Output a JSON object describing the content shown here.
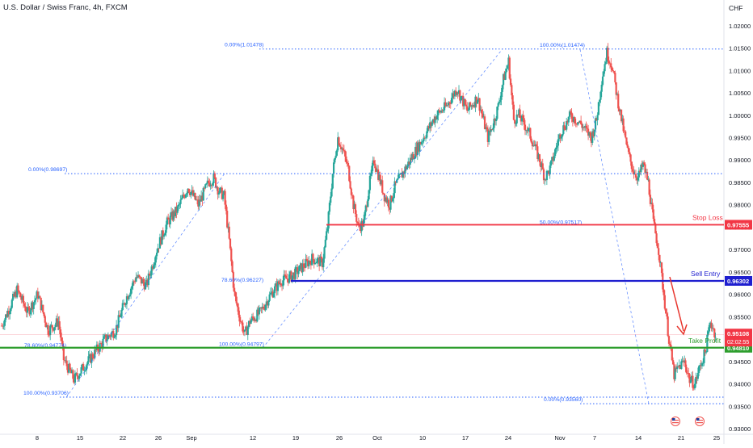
{
  "header": {
    "symbol_title": "U.S. Dollar / Swiss Franc, 4h, FXCM",
    "currency": "CHF"
  },
  "colors": {
    "up_candle": "#26a69a",
    "down_candle": "#ef5350",
    "stop_loss": "#f23645",
    "sell_entry": "#1e1ecf",
    "take_profit": "#2e9e2e",
    "current_price": "#f23645",
    "fib": "#2962ff",
    "axis_text": "#131722"
  },
  "chart_data": {
    "type": "candlestick",
    "title": "U.S. Dollar / Swiss Franc, 4h, FXCM",
    "ylim": [
      0.9295,
      1.0232
    ],
    "y_ticks": [
      "1.02000",
      "1.01500",
      "1.01000",
      "1.00500",
      "1.00000",
      "0.99500",
      "0.99000",
      "0.98500",
      "0.98000",
      "0.97500",
      "0.97000",
      "0.96500",
      "0.96000",
      "0.95500",
      "0.95000",
      "0.94500",
      "0.94000",
      "0.93500",
      "0.93000"
    ],
    "x_ticks": [
      "8",
      "15",
      "22",
      "26",
      "Sep",
      "12",
      "19",
      "26",
      "Oct",
      "10",
      "17",
      "24",
      "Nov",
      "7",
      "14",
      "21",
      "25"
    ],
    "series_close_path": [
      [
        0,
        0.953
      ],
      [
        3,
        0.961
      ],
      [
        5,
        0.956
      ],
      [
        7,
        0.96
      ],
      [
        9,
        0.952
      ],
      [
        11,
        0.954
      ],
      [
        12,
        0.9455
      ],
      [
        14,
        0.941
      ],
      [
        16,
        0.944
      ],
      [
        18,
        0.947
      ],
      [
        20,
        0.95
      ],
      [
        22,
        0.952
      ],
      [
        24,
        0.959
      ],
      [
        26,
        0.964
      ],
      [
        28,
        0.962
      ],
      [
        30,
        0.97
      ],
      [
        32,
        0.976
      ],
      [
        34,
        0.979
      ],
      [
        36,
        0.984
      ],
      [
        38,
        0.98
      ],
      [
        40,
        0.985
      ],
      [
        41,
        0.986
      ],
      [
        42,
        0.983
      ],
      [
        43,
        0.982
      ],
      [
        44,
        0.972
      ],
      [
        45,
        0.96
      ],
      [
        46,
        0.955
      ],
      [
        47,
        0.951
      ],
      [
        48,
        0.954
      ],
      [
        50,
        0.956
      ],
      [
        52,
        0.96
      ],
      [
        54,
        0.963
      ],
      [
        56,
        0.964
      ],
      [
        58,
        0.966
      ],
      [
        60,
        0.968
      ],
      [
        62,
        0.967
      ],
      [
        63,
        0.975
      ],
      [
        64,
        0.987
      ],
      [
        65,
        0.995
      ],
      [
        66,
        0.992
      ],
      [
        67,
        0.988
      ],
      [
        68,
        0.98
      ],
      [
        69,
        0.975
      ],
      [
        70,
        0.976
      ],
      [
        71,
        0.984
      ],
      [
        72,
        0.99
      ],
      [
        73,
        0.986
      ],
      [
        74,
        0.982
      ],
      [
        75,
        0.98
      ],
      [
        76,
        0.984
      ],
      [
        78,
        0.988
      ],
      [
        80,
        0.992
      ],
      [
        82,
        0.996
      ],
      [
        84,
        1.0
      ],
      [
        86,
        1.002
      ],
      [
        88,
        1.006
      ],
      [
        90,
        1.001
      ],
      [
        92,
        1.004
      ],
      [
        94,
        0.995
      ],
      [
        95,
        0.998
      ],
      [
        96,
        1.002
      ],
      [
        97,
        1.008
      ],
      [
        98,
        1.012
      ],
      [
        99,
        0.999
      ],
      [
        100,
        1.0
      ],
      [
        102,
        0.996
      ],
      [
        104,
        0.99
      ],
      [
        105,
        0.986
      ],
      [
        106,
        0.988
      ],
      [
        107,
        0.992
      ],
      [
        108,
        0.996
      ],
      [
        110,
        1.0
      ],
      [
        112,
        0.998
      ],
      [
        114,
        0.995
      ],
      [
        115,
        0.999
      ],
      [
        116,
        1.008
      ],
      [
        117,
        1.014
      ],
      [
        118,
        1.011
      ],
      [
        119,
        1.004
      ],
      [
        120,
        0.998
      ],
      [
        121,
        0.992
      ],
      [
        122,
        0.988
      ],
      [
        123,
        0.986
      ],
      [
        124,
        0.989
      ],
      [
        125,
        0.985
      ],
      [
        126,
        0.976
      ],
      [
        127,
        0.97
      ],
      [
        128,
        0.96
      ],
      [
        129,
        0.95
      ],
      [
        130,
        0.942
      ],
      [
        131,
        0.944
      ],
      [
        132,
        0.945
      ],
      [
        133,
        0.941
      ],
      [
        134,
        0.94
      ],
      [
        135,
        0.944
      ],
      [
        136,
        0.947
      ],
      [
        137,
        0.954
      ],
      [
        138,
        0.951
      ]
    ],
    "horizontal_levels": [
      {
        "name": "Stop Loss",
        "value": 0.97555,
        "label": "0.97555"
      },
      {
        "name": "Sell Entry",
        "value": 0.96302,
        "label": "0.96302"
      },
      {
        "name": "Take Profit",
        "value": 0.9481,
        "label": "0.94810"
      }
    ],
    "current_price": {
      "value": 0.95108,
      "label": "0.95108",
      "countdown": "02:02:55"
    },
    "fib_labels": [
      {
        "text": "0.00%(1.01478)",
        "value": 1.01478
      },
      {
        "text": "100.00%(1.01474)",
        "value": 1.01474
      },
      {
        "text": "0.00%(0.98697)",
        "value": 0.98697
      },
      {
        "text": "50.00%(0.97517)",
        "value": 0.97517
      },
      {
        "text": "78.60%(0.96227)",
        "value": 0.96227
      },
      {
        "text": "78.60%(0.94774)",
        "value": 0.94774
      },
      {
        "text": "100.00%(0.94797)",
        "value": 0.94797
      },
      {
        "text": "100.00%(0.93706)",
        "value": 0.93706
      },
      {
        "text": "0.00%(0.93560)",
        "value": 0.9356
      }
    ]
  }
}
